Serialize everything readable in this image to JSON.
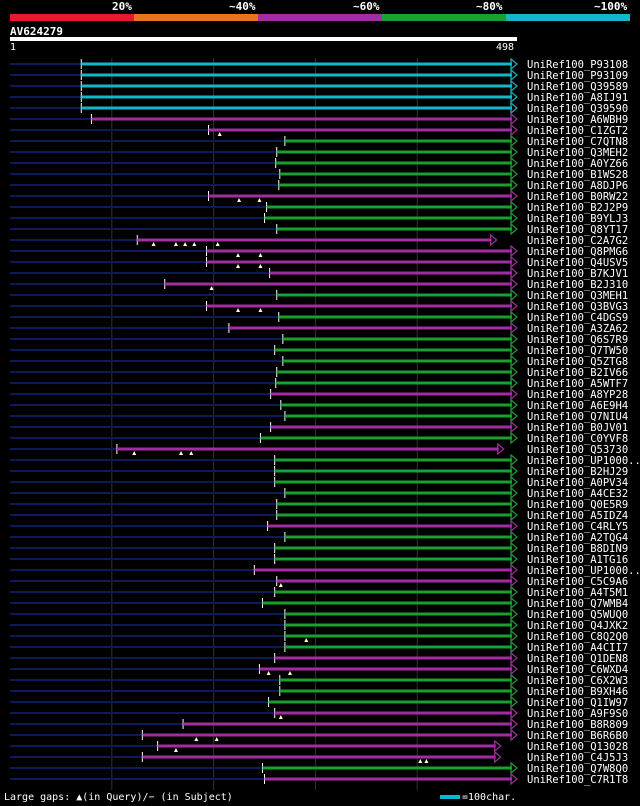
{
  "legend": {
    "segments": [
      {
        "label": "20%",
        "color": "#e8182e"
      },
      {
        "label": "~40%",
        "color": "#e8741c"
      },
      {
        "label": "~60%",
        "color": "#a02ea0"
      },
      {
        "label": "~80%",
        "color": "#18a030"
      },
      {
        "label": "~100%",
        "color": "#10b8c8"
      }
    ]
  },
  "query": {
    "id": "AV624279",
    "start": "1",
    "end": "498",
    "length": 498
  },
  "footer": {
    "gaps_text": "Large gaps: ▲(in Query)/− (in Subject)",
    "scale_text": "=100char."
  },
  "colors": {
    "c100": "#10b8c8",
    "c80": "#18a030",
    "c60": "#a02ea0",
    "backbone": "#0c1a5a"
  },
  "hits": [
    {
      "id": "UniRef100_P93108",
      "start": 70,
      "end": 498,
      "color": "c100",
      "gaps": []
    },
    {
      "id": "UniRef100_P93109",
      "start": 70,
      "end": 498,
      "color": "c100",
      "gaps": []
    },
    {
      "id": "UniRef100_Q39589",
      "start": 70,
      "end": 498,
      "color": "c100",
      "gaps": []
    },
    {
      "id": "UniRef100_A8IJ91",
      "start": 70,
      "end": 498,
      "color": "c100",
      "gaps": []
    },
    {
      "id": "UniRef100_Q39590",
      "start": 70,
      "end": 498,
      "color": "c100",
      "gaps": []
    },
    {
      "id": "UniRef100_A6WBH9",
      "start": 80,
      "end": 498,
      "color": "c60",
      "gaps": []
    },
    {
      "id": "UniRef100_C1ZGT2",
      "start": 195,
      "end": 498,
      "color": "c60",
      "gaps": [
        206
      ]
    },
    {
      "id": "UniRef100_C7QTN8",
      "start": 270,
      "end": 498,
      "color": "c80",
      "gaps": []
    },
    {
      "id": "UniRef100_Q3MEH2",
      "start": 262,
      "end": 498,
      "color": "c80",
      "gaps": []
    },
    {
      "id": "UniRef100_A0YZ66",
      "start": 261,
      "end": 498,
      "color": "c80",
      "gaps": []
    },
    {
      "id": "UniRef100_B1WS28",
      "start": 265,
      "end": 498,
      "color": "c80",
      "gaps": []
    },
    {
      "id": "UniRef100_A8DJP6",
      "start": 264,
      "end": 498,
      "color": "c80",
      "gaps": []
    },
    {
      "id": "UniRef100_B0RW22",
      "start": 195,
      "end": 498,
      "color": "c60",
      "gaps": [
        225,
        245
      ]
    },
    {
      "id": "UniRef100_B2J2P9",
      "start": 252,
      "end": 498,
      "color": "c80",
      "gaps": []
    },
    {
      "id": "UniRef100_B9YLJ3",
      "start": 250,
      "end": 498,
      "color": "c80",
      "gaps": []
    },
    {
      "id": "UniRef100_Q8YT17",
      "start": 262,
      "end": 498,
      "color": "c80",
      "gaps": []
    },
    {
      "id": "UniRef100_C2A7G2",
      "start": 125,
      "end": 478,
      "color": "c60",
      "gaps": [
        141,
        163,
        172,
        181,
        204
      ]
    },
    {
      "id": "UniRef100_Q8PMG6",
      "start": 193,
      "end": 498,
      "color": "c60",
      "gaps": [
        224,
        246
      ]
    },
    {
      "id": "UniRef100_Q4USV5",
      "start": 193,
      "end": 498,
      "color": "c60",
      "gaps": [
        224,
        246
      ]
    },
    {
      "id": "UniRef100_B7KJV1",
      "start": 255,
      "end": 498,
      "color": "c60",
      "gaps": []
    },
    {
      "id": "UniRef100_B2J310",
      "start": 152,
      "end": 498,
      "color": "c60",
      "gaps": [
        198
      ]
    },
    {
      "id": "UniRef100_Q3MEH1",
      "start": 262,
      "end": 498,
      "color": "c80",
      "gaps": []
    },
    {
      "id": "UniRef100_Q3BVG3",
      "start": 193,
      "end": 498,
      "color": "c60",
      "gaps": [
        224,
        246
      ]
    },
    {
      "id": "UniRef100_C4DGS9",
      "start": 264,
      "end": 498,
      "color": "c80",
      "gaps": []
    },
    {
      "id": "UniRef100_A3ZA62",
      "start": 215,
      "end": 498,
      "color": "c60",
      "gaps": []
    },
    {
      "id": "UniRef100_Q6S7R9",
      "start": 268,
      "end": 498,
      "color": "c80",
      "gaps": []
    },
    {
      "id": "UniRef100_Q7TW50",
      "start": 260,
      "end": 498,
      "color": "c80",
      "gaps": []
    },
    {
      "id": "UniRef100_Q5ZTG8",
      "start": 268,
      "end": 498,
      "color": "c80",
      "gaps": []
    },
    {
      "id": "UniRef100_B2IV66",
      "start": 262,
      "end": 498,
      "color": "c80",
      "gaps": []
    },
    {
      "id": "UniRef100_A5WTF7",
      "start": 261,
      "end": 498,
      "color": "c80",
      "gaps": []
    },
    {
      "id": "UniRef100_A8YP28",
      "start": 256,
      "end": 498,
      "color": "c60",
      "gaps": []
    },
    {
      "id": "UniRef100_A6E9H4",
      "start": 266,
      "end": 498,
      "color": "c80",
      "gaps": []
    },
    {
      "id": "UniRef100_Q7NIU4",
      "start": 270,
      "end": 498,
      "color": "c80",
      "gaps": []
    },
    {
      "id": "UniRef100_B0JV01",
      "start": 256,
      "end": 498,
      "color": "c60",
      "gaps": []
    },
    {
      "id": "UniRef100_C0YVF8",
      "start": 246,
      "end": 498,
      "color": "c80",
      "gaps": []
    },
    {
      "id": "UniRef100_Q53730",
      "start": 105,
      "end": 485,
      "color": "c60",
      "gaps": [
        122,
        168,
        178
      ]
    },
    {
      "id": "UniRef100_UP1000..",
      "start": 260,
      "end": 498,
      "color": "c80",
      "gaps": []
    },
    {
      "id": "UniRef100_B2HJ29",
      "start": 260,
      "end": 498,
      "color": "c80",
      "gaps": []
    },
    {
      "id": "UniRef100_A0PV34",
      "start": 260,
      "end": 498,
      "color": "c80",
      "gaps": []
    },
    {
      "id": "UniRef100_A4CE32",
      "start": 270,
      "end": 498,
      "color": "c80",
      "gaps": []
    },
    {
      "id": "UniRef100_Q0E5R9",
      "start": 262,
      "end": 498,
      "color": "c80",
      "gaps": []
    },
    {
      "id": "UniRef100_A5IDZ4",
      "start": 262,
      "end": 498,
      "color": "c80",
      "gaps": []
    },
    {
      "id": "UniRef100_C4RLY5",
      "start": 253,
      "end": 498,
      "color": "c60",
      "gaps": []
    },
    {
      "id": "UniRef100_A2TQG4",
      "start": 270,
      "end": 498,
      "color": "c80",
      "gaps": []
    },
    {
      "id": "UniRef100_B8DIN9",
      "start": 260,
      "end": 498,
      "color": "c80",
      "gaps": []
    },
    {
      "id": "UniRef100_A1TG16",
      "start": 260,
      "end": 498,
      "color": "c80",
      "gaps": []
    },
    {
      "id": "UniRef100_UP1000..",
      "start": 240,
      "end": 498,
      "color": "c60",
      "gaps": []
    },
    {
      "id": "UniRef100_C5C9A6",
      "start": 262,
      "end": 498,
      "color": "c60",
      "gaps": [
        266
      ]
    },
    {
      "id": "UniRef100_A4T5M1",
      "start": 260,
      "end": 498,
      "color": "c80",
      "gaps": []
    },
    {
      "id": "UniRef100_Q7WMB4",
      "start": 248,
      "end": 498,
      "color": "c80",
      "gaps": []
    },
    {
      "id": "UniRef100_Q5WUQ0",
      "start": 270,
      "end": 498,
      "color": "c80",
      "gaps": []
    },
    {
      "id": "UniRef100_Q4JXK2",
      "start": 270,
      "end": 498,
      "color": "c80",
      "gaps": []
    },
    {
      "id": "UniRef100_C8Q2Q0",
      "start": 270,
      "end": 498,
      "color": "c80",
      "gaps": [
        291
      ]
    },
    {
      "id": "UniRef100_A4CII7",
      "start": 270,
      "end": 498,
      "color": "c80",
      "gaps": []
    },
    {
      "id": "UniRef100_Q1DEN8",
      "start": 260,
      "end": 498,
      "color": "c60",
      "gaps": []
    },
    {
      "id": "UniRef100_C6WXD4",
      "start": 245,
      "end": 498,
      "color": "c60",
      "gaps": [
        254,
        275
      ]
    },
    {
      "id": "UniRef100_C6X2W3",
      "start": 265,
      "end": 498,
      "color": "c80",
      "gaps": []
    },
    {
      "id": "UniRef100_B9XH46",
      "start": 265,
      "end": 498,
      "color": "c80",
      "gaps": []
    },
    {
      "id": "UniRef100_Q1IW97",
      "start": 254,
      "end": 498,
      "color": "c80",
      "gaps": []
    },
    {
      "id": "UniRef100_A9F9S0",
      "start": 260,
      "end": 498,
      "color": "c60",
      "gaps": [
        266
      ]
    },
    {
      "id": "UniRef100_B8R809",
      "start": 170,
      "end": 498,
      "color": "c60",
      "gaps": []
    },
    {
      "id": "UniRef100_B6R6B0",
      "start": 130,
      "end": 498,
      "color": "c60",
      "gaps": [
        183,
        203
      ]
    },
    {
      "id": "UniRef100_Q13028",
      "start": 145,
      "end": 482,
      "color": "c60",
      "gaps": [
        163
      ]
    },
    {
      "id": "UniRef100_C4J5J3",
      "start": 130,
      "end": 482,
      "color": "c60",
      "gaps": [
        403,
        409
      ]
    },
    {
      "id": "UniRef100_Q7W8Q0",
      "start": 248,
      "end": 498,
      "color": "c80",
      "gaps": []
    },
    {
      "id": "UniRef100_C7R1T8",
      "start": 250,
      "end": 498,
      "color": "c60",
      "gaps": []
    }
  ]
}
